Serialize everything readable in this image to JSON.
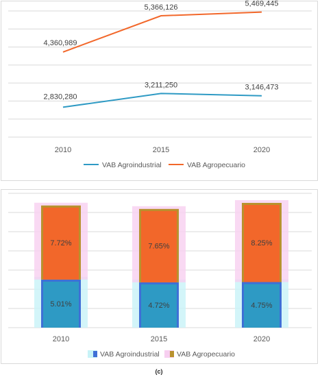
{
  "chart_data": [
    {
      "type": "line",
      "title": "",
      "categories": [
        "2010",
        "2015",
        "2020"
      ],
      "series": [
        {
          "name": "VAB Agroindustrial",
          "values": [
            2830280,
            3211250,
            3146473
          ],
          "labels": [
            "2,830,280",
            "3,211,250",
            "3,146,473"
          ],
          "color": "#2e9ac4"
        },
        {
          "name": "VAB Agropecuario",
          "values": [
            4360989,
            5366126,
            5469445
          ],
          "labels": [
            "4,360,989",
            "5,366,126",
            "5,469,445"
          ],
          "color": "#f2672a"
        }
      ],
      "ylim": [
        2000000,
        5500000
      ],
      "grid": true,
      "legend": "bottom"
    },
    {
      "type": "bar",
      "stacked": true,
      "title": "",
      "categories": [
        "2010",
        "2015",
        "2020"
      ],
      "series": [
        {
          "name": "VAB Agroindustrial",
          "values": [
            5.01,
            4.72,
            4.75
          ],
          "labels": [
            "5.01%",
            "4.72%",
            "4.75%"
          ],
          "color": "#2e9ac4"
        },
        {
          "name": "VAB Agropecuario",
          "values": [
            7.72,
            7.65,
            8.25
          ],
          "labels": [
            "7.72%",
            "7.65%",
            "8.25%"
          ],
          "color": "#f2672a"
        }
      ],
      "ylim": [
        0,
        14
      ],
      "grid": true,
      "legend": "bottom"
    }
  ],
  "caption": "(c)"
}
